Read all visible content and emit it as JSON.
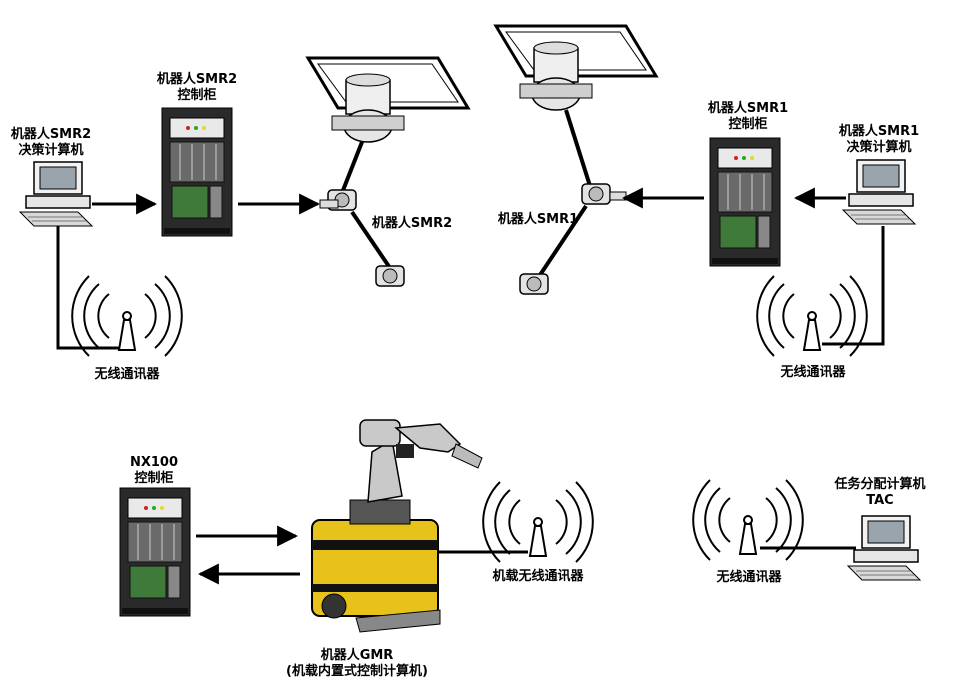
{
  "labels": {
    "smr2_pc": [
      "机器人SMR2",
      "决策计算机"
    ],
    "smr2_cabinet": [
      "机器人SMR2",
      "控制柜"
    ],
    "smr2_robot": "机器人SMR2",
    "smr1_robot": "机器人SMR1",
    "smr1_cabinet": [
      "机器人SMR1",
      "控制柜"
    ],
    "smr1_pc": [
      "机器人SMR1",
      "决策计算机"
    ],
    "wireless_left": "无线通讯器",
    "wireless_right": "无线通讯器",
    "nx100_cabinet": [
      "NX100",
      "控制柜"
    ],
    "gmr_wireless": "机载无线通讯器",
    "tac_wireless": "无线通讯器",
    "tac_pc": [
      "任务分配计算机",
      "TAC"
    ],
    "gmr_robot": [
      "机器人GMR",
      "(机载内置式控制计算机)"
    ]
  },
  "colors": {
    "ink": "#000000",
    "cabinet_body": "#2a2a2a",
    "board_green": "#3f7a3a",
    "robot_yellow": "#e7c21a",
    "arm_gray": "#c9c9c9"
  }
}
